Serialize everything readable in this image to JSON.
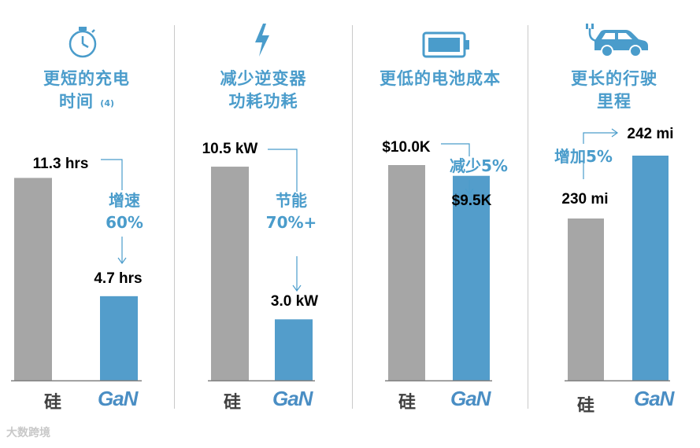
{
  "colors": {
    "silicon": "#a6a6a6",
    "gan": "#539dcb",
    "accent": "#4a9ccb",
    "axis": "#7f7f7f",
    "text": "#000000"
  },
  "watermark": "大数跨境",
  "panels": [
    {
      "icon": "stopwatch-icon",
      "title_line1": "更短的充电",
      "title_line2": "时间",
      "title_sup": "(4)"
    },
    {
      "icon": "lightning-icon",
      "title_line1": "减少逆变器",
      "title_line2": "功耗功耗",
      "title_sup": ""
    },
    {
      "icon": "battery-icon",
      "title_line1": "更低的电池成本",
      "title_line2": "",
      "title_sup": ""
    },
    {
      "icon": "electric-car-icon",
      "title_line1": "更长的行驶",
      "title_line2": "里程",
      "title_sup": ""
    }
  ],
  "chart_data": [
    {
      "type": "bar",
      "title": "更短的充电时间",
      "categories": [
        "硅",
        "GaN"
      ],
      "values": [
        11.3,
        4.7
      ],
      "unit": "hrs",
      "value_labels": [
        "11.3 hrs",
        "4.7 hrs"
      ],
      "annotation": [
        "增速",
        "60%"
      ]
    },
    {
      "type": "bar",
      "title": "减少逆变器功耗功耗",
      "categories": [
        "硅",
        "GaN"
      ],
      "values": [
        10.5,
        3.0
      ],
      "unit": "kW",
      "value_labels": [
        "10.5 kW",
        "3.0 kW"
      ],
      "annotation": [
        "节能",
        "70%+"
      ]
    },
    {
      "type": "bar",
      "title": "更低的电池成本",
      "categories": [
        "硅",
        "GaN"
      ],
      "values": [
        10.0,
        9.5
      ],
      "unit": "$K",
      "value_labels": [
        "$10.0K",
        "$9.5K"
      ],
      "annotation": [
        "减少5%"
      ]
    },
    {
      "type": "bar",
      "title": "更长的行驶里程",
      "categories": [
        "硅",
        "GaN"
      ],
      "values": [
        230,
        242
      ],
      "unit": "mi",
      "value_labels": [
        "230 mi",
        "242 mi"
      ],
      "annotation": [
        "增加5%"
      ]
    }
  ]
}
